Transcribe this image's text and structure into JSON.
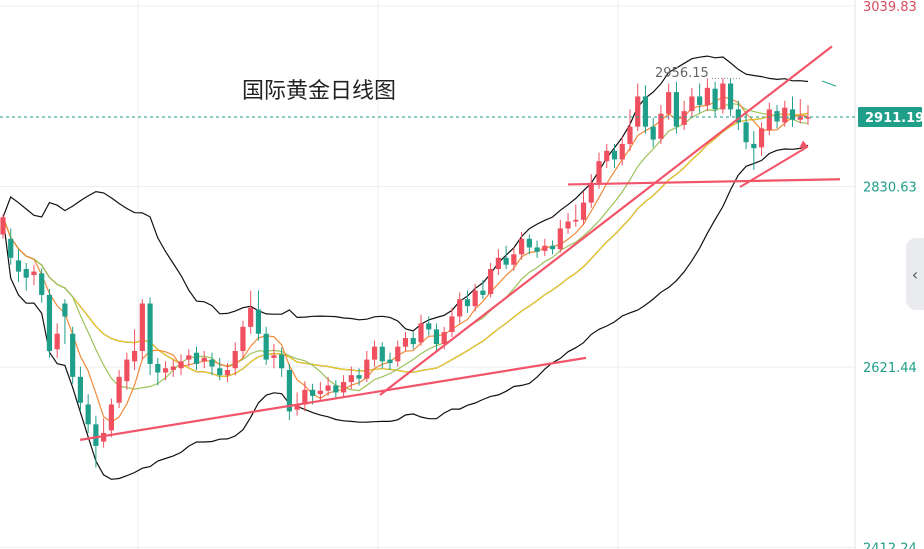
{
  "chart_data": {
    "type": "candlestick",
    "title": "国际黄金日线图",
    "y_ticks": [
      3039.83,
      2830.63,
      2621.44,
      2412.24
    ],
    "y_tick_labels": [
      "3039.83",
      "2830.63",
      "2621.44",
      "2412.24"
    ],
    "current_price": "2911.19",
    "annotation_high": "2956.15",
    "colors": {
      "up": "#ef4f5e",
      "down": "#1f9e89",
      "boll": "#111111",
      "ma5": "#f08a3a",
      "ma10": "#9cc25a",
      "ma20": "#f2cf2b",
      "trendline": "#f2556a",
      "current_price_bg": "#1f9e89"
    },
    "candles": [
      [
        2775,
        2795,
        2798,
        2770
      ],
      [
        2770,
        2748,
        2782,
        2740
      ],
      [
        2745,
        2732,
        2758,
        2720
      ],
      [
        2735,
        2725,
        2742,
        2710
      ],
      [
        2728,
        2732,
        2740,
        2716
      ],
      [
        2730,
        2705,
        2736,
        2696
      ],
      [
        2705,
        2640,
        2712,
        2632
      ],
      [
        2642,
        2660,
        2672,
        2632
      ],
      [
        2695,
        2680,
        2700,
        2648
      ],
      [
        2660,
        2610,
        2668,
        2602
      ],
      [
        2610,
        2580,
        2622,
        2570
      ],
      [
        2578,
        2555,
        2590,
        2545
      ],
      [
        2555,
        2530,
        2565,
        2505
      ],
      [
        2535,
        2545,
        2562,
        2528
      ],
      [
        2548,
        2578,
        2585,
        2540
      ],
      [
        2580,
        2610,
        2618,
        2574
      ],
      [
        2605,
        2630,
        2638,
        2595
      ],
      [
        2628,
        2640,
        2665,
        2618
      ],
      [
        2640,
        2695,
        2700,
        2630
      ],
      [
        2695,
        2625,
        2702,
        2612
      ],
      [
        2625,
        2615,
        2632,
        2600
      ],
      [
        2615,
        2620,
        2628,
        2606
      ],
      [
        2618,
        2622,
        2630,
        2610
      ],
      [
        2620,
        2628,
        2636,
        2612
      ],
      [
        2630,
        2635,
        2642,
        2622
      ],
      [
        2638,
        2625,
        2645,
        2618
      ],
      [
        2628,
        2632,
        2640,
        2620
      ],
      [
        2630,
        2622,
        2638,
        2612
      ],
      [
        2620,
        2612,
        2632,
        2606
      ],
      [
        2612,
        2618,
        2626,
        2604
      ],
      [
        2620,
        2640,
        2650,
        2612
      ],
      [
        2640,
        2668,
        2675,
        2632
      ],
      [
        2668,
        2690,
        2710,
        2660
      ],
      [
        2688,
        2660,
        2710,
        2652
      ],
      [
        2660,
        2630,
        2668,
        2624
      ],
      [
        2632,
        2635,
        2648,
        2620
      ],
      [
        2636,
        2620,
        2644,
        2610
      ],
      [
        2618,
        2570,
        2625,
        2560
      ],
      [
        2572,
        2578,
        2592,
        2565
      ],
      [
        2578,
        2595,
        2605,
        2570
      ],
      [
        2595,
        2588,
        2602,
        2578
      ],
      [
        2590,
        2594,
        2604,
        2582
      ],
      [
        2594,
        2600,
        2610,
        2588
      ],
      [
        2600,
        2592,
        2606,
        2584
      ],
      [
        2592,
        2604,
        2612,
        2586
      ],
      [
        2604,
        2612,
        2622,
        2596
      ],
      [
        2612,
        2608,
        2620,
        2600
      ],
      [
        2608,
        2630,
        2640,
        2604
      ],
      [
        2630,
        2645,
        2652,
        2622
      ],
      [
        2645,
        2628,
        2650,
        2620
      ],
      [
        2630,
        2626,
        2638,
        2618
      ],
      [
        2628,
        2645,
        2652,
        2622
      ],
      [
        2645,
        2655,
        2662,
        2640
      ],
      [
        2655,
        2648,
        2662,
        2642
      ],
      [
        2650,
        2672,
        2682,
        2646
      ],
      [
        2672,
        2665,
        2680,
        2658
      ],
      [
        2665,
        2648,
        2672,
        2640
      ],
      [
        2648,
        2662,
        2668,
        2642
      ],
      [
        2662,
        2680,
        2690,
        2656
      ],
      [
        2680,
        2700,
        2708,
        2672
      ],
      [
        2700,
        2692,
        2710,
        2684
      ],
      [
        2692,
        2710,
        2718,
        2686
      ],
      [
        2710,
        2705,
        2722,
        2700
      ],
      [
        2706,
        2735,
        2742,
        2702
      ],
      [
        2735,
        2748,
        2758,
        2728
      ],
      [
        2748,
        2740,
        2762,
        2735
      ],
      [
        2740,
        2752,
        2760,
        2733
      ],
      [
        2752,
        2770,
        2778,
        2746
      ],
      [
        2770,
        2760,
        2775,
        2752
      ],
      [
        2760,
        2755,
        2768,
        2748
      ],
      [
        2756,
        2762,
        2770,
        2750
      ],
      [
        2762,
        2758,
        2768,
        2752
      ],
      [
        2758,
        2782,
        2792,
        2754
      ],
      [
        2782,
        2790,
        2800,
        2776
      ],
      [
        2790,
        2792,
        2810,
        2784
      ],
      [
        2792,
        2812,
        2825,
        2786
      ],
      [
        2812,
        2835,
        2845,
        2806
      ],
      [
        2835,
        2860,
        2870,
        2828
      ],
      [
        2860,
        2872,
        2880,
        2852
      ],
      [
        2872,
        2862,
        2880,
        2852
      ],
      [
        2862,
        2880,
        2888,
        2855
      ],
      [
        2880,
        2900,
        2920,
        2872
      ],
      [
        2900,
        2935,
        2950,
        2895
      ],
      [
        2935,
        2900,
        2948,
        2892
      ],
      [
        2900,
        2885,
        2910,
        2876
      ],
      [
        2886,
        2915,
        2925,
        2880
      ],
      [
        2915,
        2940,
        2950,
        2908
      ],
      [
        2940,
        2900,
        2952,
        2892
      ],
      [
        2902,
        2918,
        2930,
        2896
      ],
      [
        2918,
        2935,
        2945,
        2910
      ],
      [
        2935,
        2925,
        2950,
        2916
      ],
      [
        2925,
        2945,
        2956,
        2918
      ],
      [
        2944,
        2920,
        2952,
        2912
      ],
      [
        2920,
        2950,
        2956,
        2915
      ],
      [
        2950,
        2920,
        2956,
        2912
      ],
      [
        2920,
        2905,
        2930,
        2896
      ],
      [
        2905,
        2882,
        2918,
        2874
      ],
      [
        2880,
        2875,
        2895,
        2850
      ],
      [
        2876,
        2898,
        2905,
        2866
      ],
      [
        2896,
        2920,
        2928,
        2890
      ],
      [
        2918,
        2906,
        2925,
        2898
      ],
      [
        2905,
        2922,
        2930,
        2900
      ],
      [
        2920,
        2908,
        2935,
        2900
      ],
      [
        2908,
        2912,
        2932,
        2904
      ],
      [
        2910,
        2911,
        2925,
        2902
      ]
    ]
  }
}
